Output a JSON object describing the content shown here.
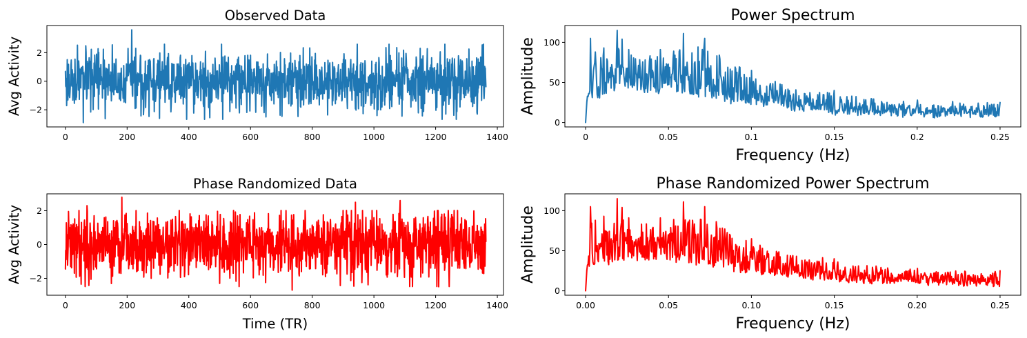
{
  "colors": {
    "observed": "#1f77b4",
    "randomized": "#ff0000"
  },
  "chart_data": [
    {
      "type": "line",
      "title": "Observed Data",
      "xlabel": "",
      "ylabel": "Avg Activity",
      "xlim": [
        -60,
        1420
      ],
      "ylim": [
        -3.2,
        3.9
      ],
      "xticks": [
        0,
        200,
        400,
        600,
        800,
        1000,
        1200,
        1400
      ],
      "yticks": [
        -2,
        0,
        2
      ],
      "grid": false,
      "series": [
        {
          "color": "#1f77b4",
          "n_points": 1364,
          "x_start": 0,
          "x_step": 1,
          "mean": 0.0,
          "std": 1.0,
          "envelope": {
            "min": -2.9,
            "max": 3.6
          },
          "highlights": [
            [
              58,
              -2.9
            ],
            [
              215,
              3.6
            ],
            [
              228,
              2.3
            ],
            [
              305,
              -2.6
            ],
            [
              650,
              -2.5
            ],
            [
              1150,
              2.3
            ],
            [
              1010,
              -2.4
            ],
            [
              1335,
              -2.3
            ]
          ]
        }
      ]
    },
    {
      "type": "line",
      "title": "Power Spectrum",
      "xlabel": "Frequency (Hz)",
      "ylabel": "Amplitude",
      "xlim": [
        -0.0125,
        0.2625
      ],
      "ylim": [
        -5.5,
        121
      ],
      "xticks": [
        0.0,
        0.05,
        0.1,
        0.15,
        0.2,
        0.25
      ],
      "yticks": [
        0,
        50,
        100
      ],
      "grid": false,
      "series": [
        {
          "color": "#1f77b4",
          "n_points": 683,
          "x_start": 0.0,
          "x_end": 0.25,
          "start_value": 0,
          "envelope_points": [
            [
              0.0,
              0
            ],
            [
              0.003,
              105
            ],
            [
              0.006,
              88
            ],
            [
              0.011,
              93
            ],
            [
              0.019,
              115
            ],
            [
              0.022,
              104
            ],
            [
              0.026,
              91
            ],
            [
              0.045,
              91
            ],
            [
              0.053,
              89
            ],
            [
              0.059,
              111
            ],
            [
              0.072,
              105
            ],
            [
              0.1,
              65
            ],
            [
              0.15,
              40
            ],
            [
              0.2,
              28
            ],
            [
              0.25,
              25
            ]
          ],
          "baseline_points": [
            [
              0.0,
              30
            ],
            [
              0.03,
              40
            ],
            [
              0.06,
              35
            ],
            [
              0.1,
              22
            ],
            [
              0.15,
              12
            ],
            [
              0.2,
              9
            ],
            [
              0.25,
              8
            ]
          ]
        }
      ]
    },
    {
      "type": "line",
      "title": "Phase Randomized Data",
      "xlabel": "Time (TR)",
      "ylabel": "Avg Activity",
      "xlim": [
        -60,
        1420
      ],
      "ylim": [
        -3.0,
        3.0
      ],
      "xticks": [
        0,
        200,
        400,
        600,
        800,
        1000,
        1200,
        1400
      ],
      "yticks": [
        -2,
        0,
        2
      ],
      "grid": false,
      "series": [
        {
          "color": "#ff0000",
          "n_points": 1364,
          "x_start": 0,
          "x_step": 1,
          "mean": 0.0,
          "std": 1.0,
          "envelope": {
            "min": -2.7,
            "max": 2.8
          },
          "highlights": [
            [
              183,
              2.8
            ],
            [
              735,
              -2.7
            ],
            [
              1210,
              -2.5
            ],
            [
              940,
              2.5
            ],
            [
              1085,
              2.6
            ],
            [
              70,
              2.3
            ],
            [
              500,
              -2.3
            ]
          ]
        }
      ]
    },
    {
      "type": "line",
      "title": "Phase Randomized Power Spectrum",
      "xlabel": "Frequency (Hz)",
      "ylabel": "Amplitude",
      "xlim": [
        -0.0125,
        0.2625
      ],
      "ylim": [
        -5.5,
        121
      ],
      "xticks": [
        0.0,
        0.05,
        0.1,
        0.15,
        0.2,
        0.25
      ],
      "yticks": [
        0,
        50,
        100
      ],
      "grid": false,
      "series": [
        {
          "color": "#ff0000",
          "n_points": 683,
          "x_start": 0.0,
          "x_end": 0.25,
          "start_value": 0,
          "envelope_points": [
            [
              0.0,
              0
            ],
            [
              0.003,
              105
            ],
            [
              0.006,
              88
            ],
            [
              0.011,
              93
            ],
            [
              0.019,
              115
            ],
            [
              0.022,
              104
            ],
            [
              0.026,
              91
            ],
            [
              0.045,
              91
            ],
            [
              0.053,
              89
            ],
            [
              0.059,
              111
            ],
            [
              0.072,
              105
            ],
            [
              0.1,
              65
            ],
            [
              0.15,
              40
            ],
            [
              0.2,
              28
            ],
            [
              0.25,
              25
            ]
          ],
          "baseline_points": [
            [
              0.0,
              30
            ],
            [
              0.03,
              40
            ],
            [
              0.06,
              35
            ],
            [
              0.1,
              22
            ],
            [
              0.15,
              12
            ],
            [
              0.2,
              9
            ],
            [
              0.25,
              8
            ]
          ]
        }
      ]
    }
  ]
}
